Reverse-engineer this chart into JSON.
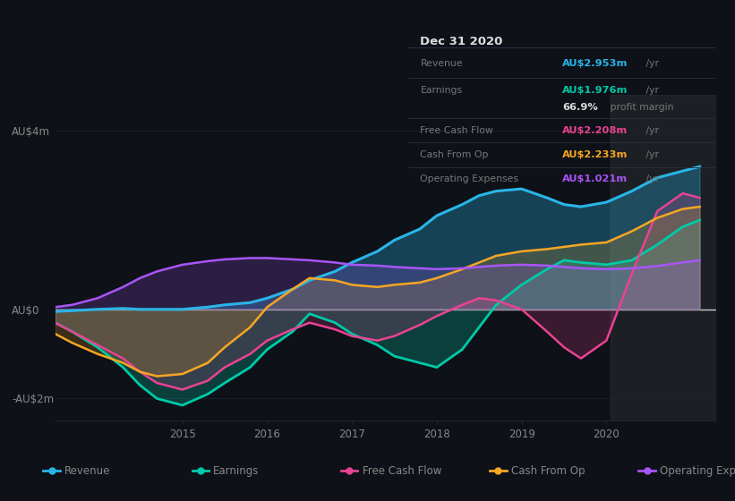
{
  "background_color": "#0e1117",
  "plot_bg_color": "#0e1117",
  "title_box": {
    "date": "Dec 31 2020",
    "rows": [
      {
        "label": "Revenue",
        "value": "AU$2.953m",
        "unit": "/yr",
        "value_color": "#29b5e8",
        "label_color": "#888888"
      },
      {
        "label": "Earnings",
        "value": "AU$1.976m",
        "unit": "/yr",
        "value_color": "#00c9a7",
        "label_color": "#888888"
      },
      {
        "label": "",
        "value": "66.9%",
        "unit": " profit margin",
        "value_color": "#ffffff",
        "label_color": "#888888"
      },
      {
        "label": "Free Cash Flow",
        "value": "AU$2.208m",
        "unit": "/yr",
        "value_color": "#e84393",
        "label_color": "#888888"
      },
      {
        "label": "Cash From Op",
        "value": "AU$2.233m",
        "unit": "/yr",
        "value_color": "#f5a623",
        "label_color": "#888888"
      },
      {
        "label": "Operating Expenses",
        "value": "AU$1.021m",
        "unit": "/yr",
        "value_color": "#a855f7",
        "label_color": "#888888"
      }
    ]
  },
  "ylim": [
    -2.5,
    4.8
  ],
  "yticks_vals": [
    -2,
    0,
    4
  ],
  "ytick_labels": [
    "-AU$2m",
    "AU$0",
    "AU$4m"
  ],
  "xlim": [
    2013.5,
    2021.3
  ],
  "xticks": [
    2015,
    2016,
    2017,
    2018,
    2019,
    2020
  ],
  "xtick_labels": [
    "2015",
    "2016",
    "2017",
    "2018",
    "2019",
    "2020"
  ],
  "series": {
    "revenue": {
      "color": "#29b5e8",
      "fill_alpha": 0.3,
      "x": [
        2013.5,
        2013.7,
        2014.0,
        2014.3,
        2014.5,
        2014.7,
        2015.0,
        2015.3,
        2015.5,
        2015.8,
        2016.0,
        2016.3,
        2016.5,
        2016.8,
        2017.0,
        2017.3,
        2017.5,
        2017.8,
        2018.0,
        2018.3,
        2018.5,
        2018.7,
        2019.0,
        2019.3,
        2019.5,
        2019.7,
        2020.0,
        2020.3,
        2020.6,
        2020.9,
        2021.1
      ],
      "y": [
        -0.05,
        -0.03,
        0.0,
        0.02,
        0.0,
        0.0,
        0.0,
        0.05,
        0.1,
        0.15,
        0.25,
        0.45,
        0.65,
        0.85,
        1.05,
        1.3,
        1.55,
        1.8,
        2.1,
        2.35,
        2.55,
        2.65,
        2.7,
        2.5,
        2.35,
        2.3,
        2.4,
        2.65,
        2.95,
        3.1,
        3.2
      ]
    },
    "earnings": {
      "color": "#00c9a7",
      "fill_alpha": 0.25,
      "x": [
        2013.5,
        2013.7,
        2014.0,
        2014.3,
        2014.5,
        2014.7,
        2015.0,
        2015.3,
        2015.5,
        2015.8,
        2016.0,
        2016.3,
        2016.5,
        2016.8,
        2017.0,
        2017.3,
        2017.5,
        2017.8,
        2018.0,
        2018.3,
        2018.5,
        2018.7,
        2019.0,
        2019.3,
        2019.5,
        2019.7,
        2020.0,
        2020.3,
        2020.6,
        2020.9,
        2021.1
      ],
      "y": [
        -0.3,
        -0.5,
        -0.85,
        -1.3,
        -1.7,
        -2.0,
        -2.15,
        -1.9,
        -1.65,
        -1.3,
        -0.9,
        -0.5,
        -0.1,
        -0.3,
        -0.55,
        -0.8,
        -1.05,
        -1.2,
        -1.3,
        -0.9,
        -0.4,
        0.1,
        0.55,
        0.9,
        1.1,
        1.05,
        1.0,
        1.1,
        1.45,
        1.85,
        2.0
      ]
    },
    "free_cash_flow": {
      "color": "#e84393",
      "fill_alpha": 0.2,
      "x": [
        2013.5,
        2013.7,
        2014.0,
        2014.3,
        2014.5,
        2014.7,
        2015.0,
        2015.3,
        2015.5,
        2015.8,
        2016.0,
        2016.3,
        2016.5,
        2016.8,
        2017.0,
        2017.3,
        2017.5,
        2017.8,
        2018.0,
        2018.3,
        2018.5,
        2018.7,
        2019.0,
        2019.3,
        2019.5,
        2019.7,
        2020.0,
        2020.3,
        2020.6,
        2020.9,
        2021.1
      ],
      "y": [
        -0.3,
        -0.5,
        -0.8,
        -1.1,
        -1.4,
        -1.65,
        -1.8,
        -1.6,
        -1.3,
        -1.0,
        -0.7,
        -0.45,
        -0.3,
        -0.45,
        -0.6,
        -0.7,
        -0.6,
        -0.35,
        -0.15,
        0.1,
        0.25,
        0.2,
        0.0,
        -0.5,
        -0.85,
        -1.1,
        -0.7,
        0.8,
        2.2,
        2.6,
        2.5
      ]
    },
    "cash_from_op": {
      "color": "#f5a623",
      "fill_alpha": 0.2,
      "x": [
        2013.5,
        2013.7,
        2014.0,
        2014.3,
        2014.5,
        2014.7,
        2015.0,
        2015.3,
        2015.5,
        2015.8,
        2016.0,
        2016.3,
        2016.5,
        2016.8,
        2017.0,
        2017.3,
        2017.5,
        2017.8,
        2018.0,
        2018.3,
        2018.5,
        2018.7,
        2019.0,
        2019.3,
        2019.5,
        2019.7,
        2020.0,
        2020.3,
        2020.6,
        2020.9,
        2021.1
      ],
      "y": [
        -0.55,
        -0.75,
        -1.0,
        -1.2,
        -1.4,
        -1.5,
        -1.45,
        -1.2,
        -0.85,
        -0.4,
        0.05,
        0.45,
        0.7,
        0.65,
        0.55,
        0.5,
        0.55,
        0.6,
        0.7,
        0.9,
        1.05,
        1.2,
        1.3,
        1.35,
        1.4,
        1.45,
        1.5,
        1.75,
        2.05,
        2.25,
        2.3
      ]
    },
    "operating_expenses": {
      "color": "#a855f7",
      "fill_alpha": 0.2,
      "x": [
        2013.5,
        2013.7,
        2014.0,
        2014.3,
        2014.5,
        2014.7,
        2015.0,
        2015.3,
        2015.5,
        2015.8,
        2016.0,
        2016.3,
        2016.5,
        2016.8,
        2017.0,
        2017.3,
        2017.5,
        2017.8,
        2018.0,
        2018.3,
        2018.5,
        2018.7,
        2019.0,
        2019.3,
        2019.5,
        2019.7,
        2020.0,
        2020.3,
        2020.6,
        2020.9,
        2021.1
      ],
      "y": [
        0.05,
        0.1,
        0.25,
        0.5,
        0.7,
        0.85,
        1.0,
        1.08,
        1.12,
        1.15,
        1.15,
        1.12,
        1.1,
        1.05,
        1.0,
        0.98,
        0.95,
        0.92,
        0.9,
        0.92,
        0.95,
        0.98,
        1.0,
        0.98,
        0.95,
        0.92,
        0.9,
        0.92,
        0.97,
        1.05,
        1.1
      ]
    }
  },
  "zero_line_color": "#cccccc",
  "grid_color": "#1e2530",
  "text_color": "#888888",
  "legend_bg": "#161b22",
  "legend_edge": "#30363d",
  "shaded_region": {
    "x_start": 2020.05,
    "x_end": 2021.3,
    "color": "#888888",
    "alpha": 0.12
  },
  "legend_items": [
    {
      "label": "Revenue",
      "color": "#29b5e8"
    },
    {
      "label": "Earnings",
      "color": "#00c9a7"
    },
    {
      "label": "Free Cash Flow",
      "color": "#e84393"
    },
    {
      "label": "Cash From Op",
      "color": "#f5a623"
    },
    {
      "label": "Operating Expenses",
      "color": "#a855f7"
    }
  ]
}
